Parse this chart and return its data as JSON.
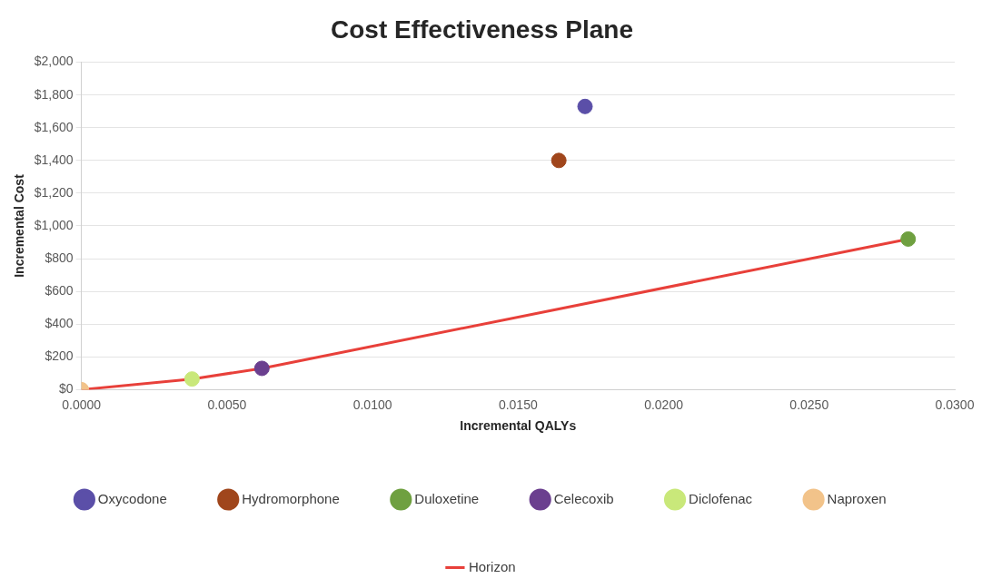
{
  "chart_data": {
    "type": "scatter",
    "title": "Cost Effectiveness Plane",
    "xlabel": "Incremental QALYs",
    "ylabel": "Incremental Cost",
    "xlim": [
      0,
      0.03
    ],
    "xticks": [
      {
        "value": 0,
        "label": "0.0000"
      },
      {
        "value": 0.005,
        "label": "0.0050"
      },
      {
        "value": 0.01,
        "label": "0.0100"
      },
      {
        "value": 0.015,
        "label": "0.0150"
      },
      {
        "value": 0.02,
        "label": "0.0200"
      },
      {
        "value": 0.025,
        "label": "0.0250"
      },
      {
        "value": 0.03,
        "label": "0.0300"
      }
    ],
    "ylim": [
      0,
      2000
    ],
    "yticks": [
      {
        "value": 0,
        "label": "$0"
      },
      {
        "value": 200,
        "label": "$200"
      },
      {
        "value": 400,
        "label": "$400"
      },
      {
        "value": 600,
        "label": "$600"
      },
      {
        "value": 800,
        "label": "$800"
      },
      {
        "value": 1000,
        "label": "$1,000"
      },
      {
        "value": 1200,
        "label": "$1,200"
      },
      {
        "value": 1400,
        "label": "$1,400"
      },
      {
        "value": 1600,
        "label": "$1,600"
      },
      {
        "value": 1800,
        "label": "$1,800"
      },
      {
        "value": 2000,
        "label": "$2,000"
      }
    ],
    "grid": "y",
    "legend": "bottom",
    "marker": "circle",
    "series": [
      {
        "name": "Oxycodone",
        "color": "#5b4fa8",
        "x": [
          0.0173
        ],
        "values": [
          1730
        ]
      },
      {
        "name": "Hydromorphone",
        "color": "#a0461c",
        "x": [
          0.0164
        ],
        "values": [
          1400
        ]
      },
      {
        "name": "Duloxetine",
        "color": "#6fa040",
        "x": [
          0.0284
        ],
        "values": [
          920
        ]
      },
      {
        "name": "Celecoxib",
        "color": "#6b3f8f",
        "x": [
          0.0062
        ],
        "values": [
          130
        ]
      },
      {
        "name": "Diclofenac",
        "color": "#c9e87a",
        "x": [
          0.0038
        ],
        "values": [
          65
        ]
      },
      {
        "name": "Naproxen",
        "color": "#f2c38a",
        "x": [
          0
        ],
        "values": [
          0
        ]
      },
      {
        "name": "Horizon",
        "type": "line",
        "marker": "none",
        "color": "#e8403a",
        "x": [
          0,
          0.0038,
          0.0062,
          0.0284
        ],
        "values": [
          0,
          65,
          130,
          920
        ]
      }
    ]
  }
}
